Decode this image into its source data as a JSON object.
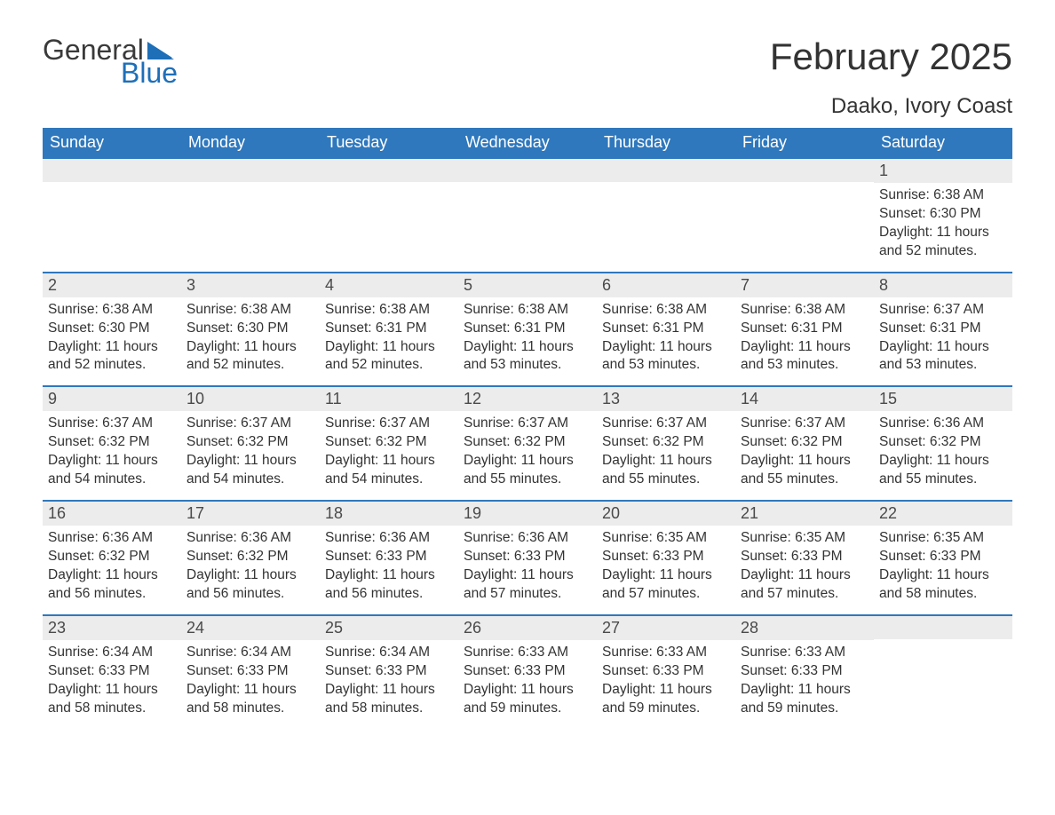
{
  "brand": {
    "word1": "General",
    "word2": "Blue",
    "flag_color": "#1e6fb8"
  },
  "title": "February 2025",
  "location": "Daako, Ivory Coast",
  "colors": {
    "header_bg": "#2f78bd",
    "header_fg": "#ffffff",
    "daynum_bg": "#ececec",
    "border_top": "#2f78bd",
    "text": "#333333",
    "background": "#ffffff"
  },
  "day_headers": [
    "Sunday",
    "Monday",
    "Tuesday",
    "Wednesday",
    "Thursday",
    "Friday",
    "Saturday"
  ],
  "weeks": [
    [
      null,
      null,
      null,
      null,
      null,
      null,
      {
        "n": "1",
        "sunrise": "6:38 AM",
        "sunset": "6:30 PM",
        "daylight": "11 hours and 52 minutes."
      }
    ],
    [
      {
        "n": "2",
        "sunrise": "6:38 AM",
        "sunset": "6:30 PM",
        "daylight": "11 hours and 52 minutes."
      },
      {
        "n": "3",
        "sunrise": "6:38 AM",
        "sunset": "6:30 PM",
        "daylight": "11 hours and 52 minutes."
      },
      {
        "n": "4",
        "sunrise": "6:38 AM",
        "sunset": "6:31 PM",
        "daylight": "11 hours and 52 minutes."
      },
      {
        "n": "5",
        "sunrise": "6:38 AM",
        "sunset": "6:31 PM",
        "daylight": "11 hours and 53 minutes."
      },
      {
        "n": "6",
        "sunrise": "6:38 AM",
        "sunset": "6:31 PM",
        "daylight": "11 hours and 53 minutes."
      },
      {
        "n": "7",
        "sunrise": "6:38 AM",
        "sunset": "6:31 PM",
        "daylight": "11 hours and 53 minutes."
      },
      {
        "n": "8",
        "sunrise": "6:37 AM",
        "sunset": "6:31 PM",
        "daylight": "11 hours and 53 minutes."
      }
    ],
    [
      {
        "n": "9",
        "sunrise": "6:37 AM",
        "sunset": "6:32 PM",
        "daylight": "11 hours and 54 minutes."
      },
      {
        "n": "10",
        "sunrise": "6:37 AM",
        "sunset": "6:32 PM",
        "daylight": "11 hours and 54 minutes."
      },
      {
        "n": "11",
        "sunrise": "6:37 AM",
        "sunset": "6:32 PM",
        "daylight": "11 hours and 54 minutes."
      },
      {
        "n": "12",
        "sunrise": "6:37 AM",
        "sunset": "6:32 PM",
        "daylight": "11 hours and 55 minutes."
      },
      {
        "n": "13",
        "sunrise": "6:37 AM",
        "sunset": "6:32 PM",
        "daylight": "11 hours and 55 minutes."
      },
      {
        "n": "14",
        "sunrise": "6:37 AM",
        "sunset": "6:32 PM",
        "daylight": "11 hours and 55 minutes."
      },
      {
        "n": "15",
        "sunrise": "6:36 AM",
        "sunset": "6:32 PM",
        "daylight": "11 hours and 55 minutes."
      }
    ],
    [
      {
        "n": "16",
        "sunrise": "6:36 AM",
        "sunset": "6:32 PM",
        "daylight": "11 hours and 56 minutes."
      },
      {
        "n": "17",
        "sunrise": "6:36 AM",
        "sunset": "6:32 PM",
        "daylight": "11 hours and 56 minutes."
      },
      {
        "n": "18",
        "sunrise": "6:36 AM",
        "sunset": "6:33 PM",
        "daylight": "11 hours and 56 minutes."
      },
      {
        "n": "19",
        "sunrise": "6:36 AM",
        "sunset": "6:33 PM",
        "daylight": "11 hours and 57 minutes."
      },
      {
        "n": "20",
        "sunrise": "6:35 AM",
        "sunset": "6:33 PM",
        "daylight": "11 hours and 57 minutes."
      },
      {
        "n": "21",
        "sunrise": "6:35 AM",
        "sunset": "6:33 PM",
        "daylight": "11 hours and 57 minutes."
      },
      {
        "n": "22",
        "sunrise": "6:35 AM",
        "sunset": "6:33 PM",
        "daylight": "11 hours and 58 minutes."
      }
    ],
    [
      {
        "n": "23",
        "sunrise": "6:34 AM",
        "sunset": "6:33 PM",
        "daylight": "11 hours and 58 minutes."
      },
      {
        "n": "24",
        "sunrise": "6:34 AM",
        "sunset": "6:33 PM",
        "daylight": "11 hours and 58 minutes."
      },
      {
        "n": "25",
        "sunrise": "6:34 AM",
        "sunset": "6:33 PM",
        "daylight": "11 hours and 58 minutes."
      },
      {
        "n": "26",
        "sunrise": "6:33 AM",
        "sunset": "6:33 PM",
        "daylight": "11 hours and 59 minutes."
      },
      {
        "n": "27",
        "sunrise": "6:33 AM",
        "sunset": "6:33 PM",
        "daylight": "11 hours and 59 minutes."
      },
      {
        "n": "28",
        "sunrise": "6:33 AM",
        "sunset": "6:33 PM",
        "daylight": "11 hours and 59 minutes."
      },
      null
    ]
  ],
  "labels": {
    "sunrise": "Sunrise:",
    "sunset": "Sunset:",
    "daylight": "Daylight:"
  }
}
